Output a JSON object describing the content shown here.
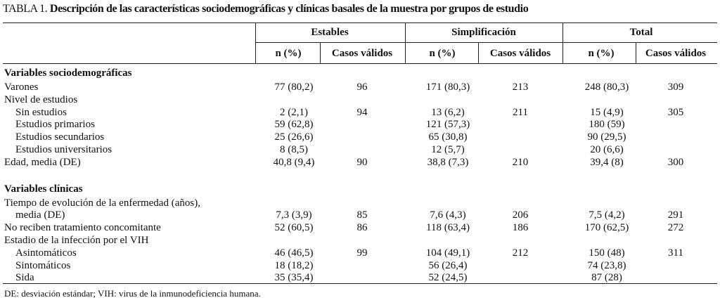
{
  "title": {
    "label": "TABLA 1.",
    "text": "Descripción de las características sociodemográficas y clínicas basales de la muestra por grupos de estudio"
  },
  "table": {
    "groups": [
      "Estables",
      "Simplificación",
      "Total"
    ],
    "columns": [
      "n (%)",
      "Casos válidos",
      "n (%)",
      "Casos válidos",
      "n (%)",
      "Casos válidos"
    ],
    "sections": [
      {
        "title": "Variables sociodemográficas",
        "rows": [
          {
            "label": "Varones",
            "cells": [
              "77 (80,2)",
              "96",
              "171 (80,3)",
              "213",
              "248 (80,3)",
              "309"
            ]
          },
          {
            "label": "Nivel de estudios"
          },
          {
            "label": "Sin estudios",
            "indent": true,
            "cells": [
              "2 (2,1)",
              "94",
              "13 (6,2)",
              "211",
              "15 (4,9)",
              "305"
            ]
          },
          {
            "label": "Estudios primarios",
            "indent": true,
            "cells": [
              "59 (62,8)",
              null,
              "121 (57,3)",
              null,
              "180 (59)",
              null
            ]
          },
          {
            "label": "Estudios secundarios",
            "indent": true,
            "cells": [
              "25 (26,6)",
              null,
              "65 (30,8)",
              null,
              "90 (29,5)",
              null
            ]
          },
          {
            "label": "Estudios universitarios",
            "indent": true,
            "cells": [
              "8 (8,5)",
              null,
              "12 (5,7)",
              null,
              "20 (6,6)",
              null
            ]
          },
          {
            "label": "Edad, media (DE)",
            "cells": [
              "40,8 (9,4)",
              "90",
              "38,8 (7,3)",
              "210",
              "39,4 (8)",
              "300"
            ]
          }
        ]
      },
      {
        "title": "Variables clínicas",
        "rows": [
          {
            "label": "Tiempo de evolución de la enfermedad (años),"
          },
          {
            "label": "media (DE)",
            "indent": true,
            "cells": [
              "7,3 (3,9)",
              "85",
              "7,6 (4,3)",
              "206",
              "7,5 (4,2)",
              "291"
            ]
          },
          {
            "label": "No reciben tratamiento concomitante",
            "cells": [
              "52 (60,5)",
              "86",
              "118 (63,4)",
              "186",
              "170 (62,5)",
              "272"
            ]
          },
          {
            "label": "Estadio de la infección por el VIH"
          },
          {
            "label": "Asintomáticos",
            "indent": true,
            "cells": [
              "46 (46,5)",
              "99",
              "104 (49,1)",
              "212",
              "150 (48)",
              "311"
            ]
          },
          {
            "label": "Sintomáticos",
            "indent": true,
            "cells": [
              "18 (18,2)",
              null,
              "56 (26,4)",
              null,
              "74 (23,8)",
              null
            ]
          },
          {
            "label": "Sida",
            "indent": true,
            "cells": [
              "35 (35,4)",
              null,
              "52 (24,5)",
              null,
              "87 (28)",
              null
            ]
          }
        ]
      }
    ]
  },
  "footnote": "DE: desviación estándar; VIH: virus de la inmunodeficiencia humana."
}
